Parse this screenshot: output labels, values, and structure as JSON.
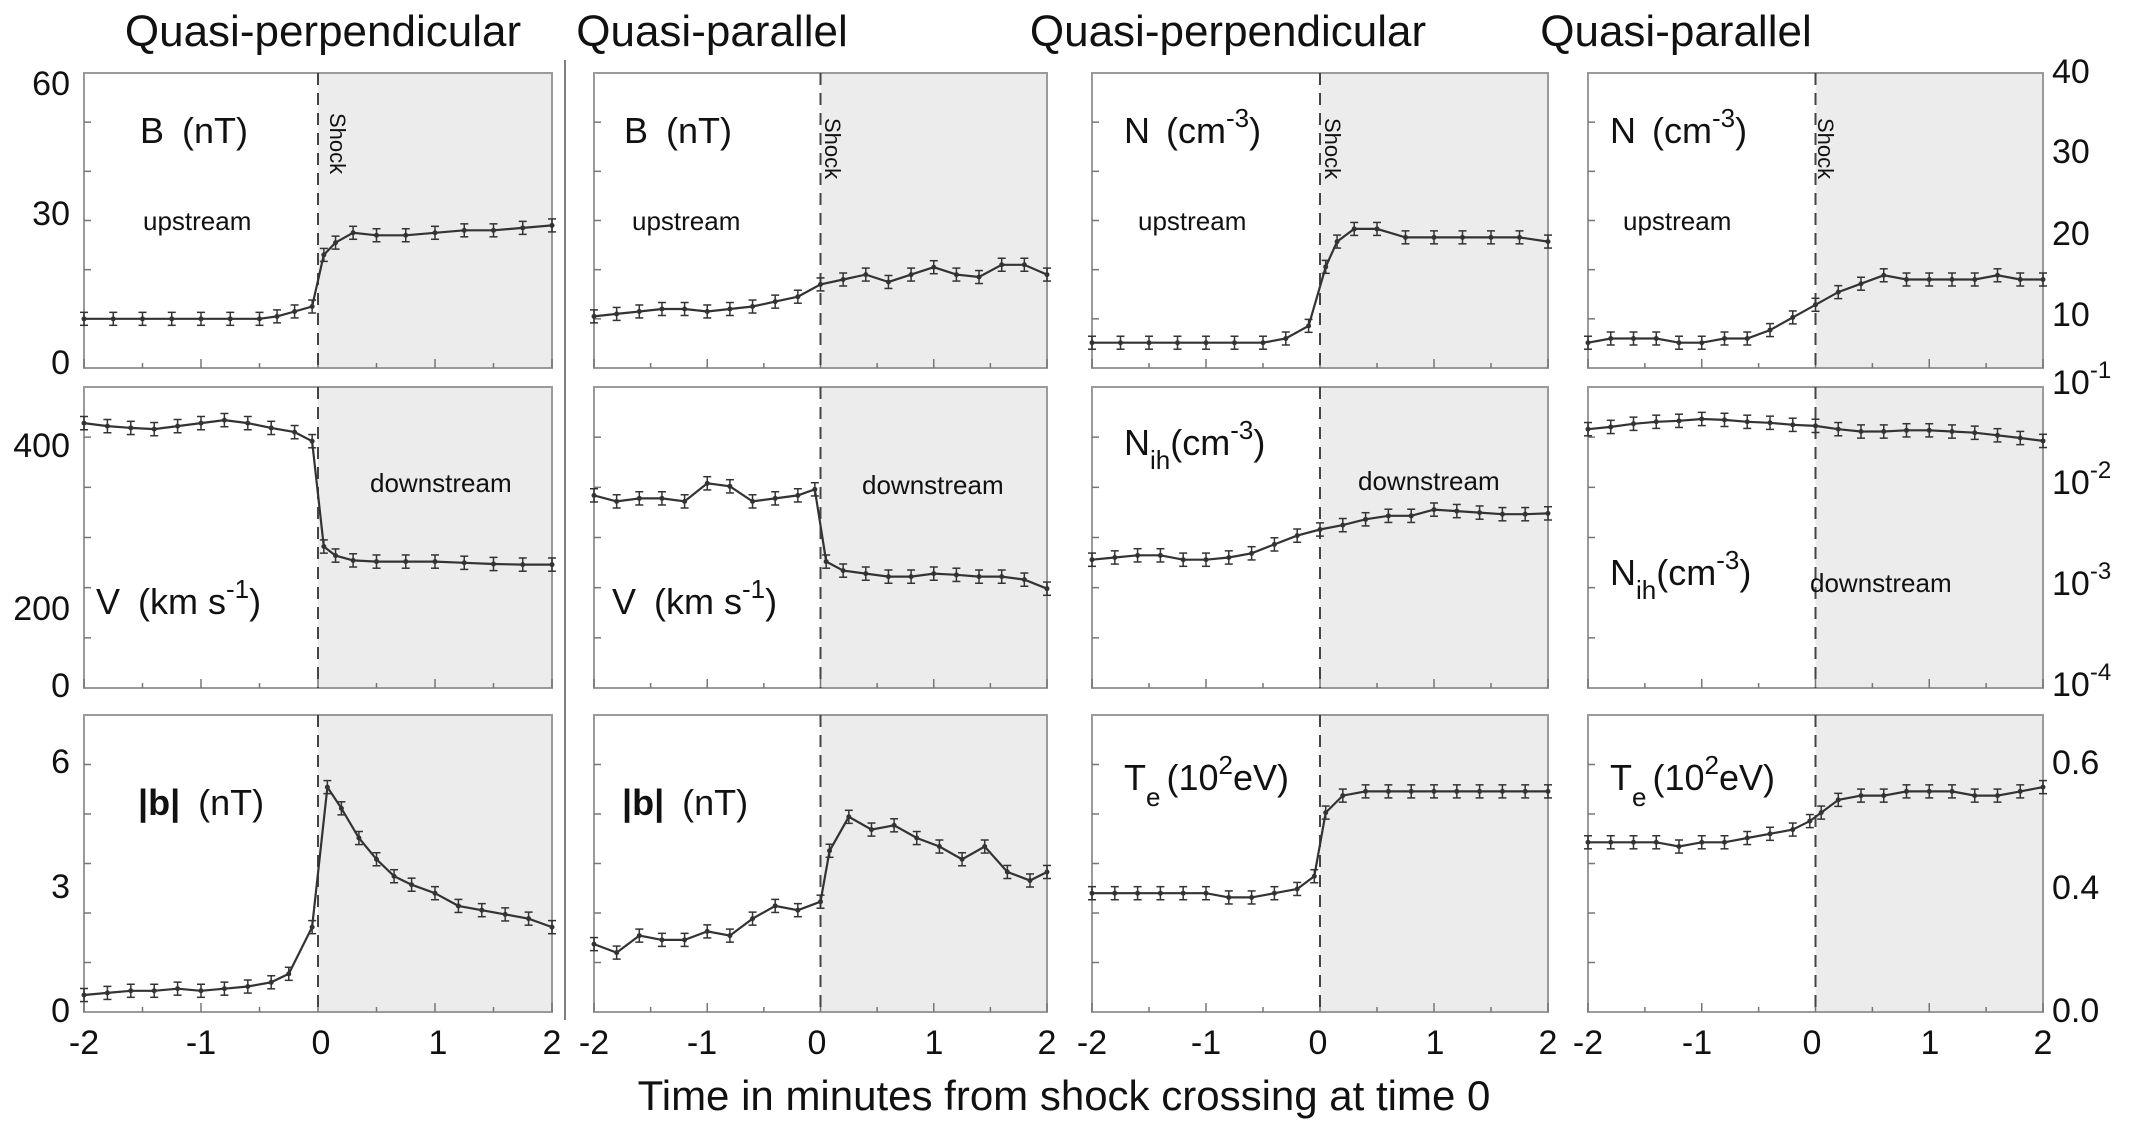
{
  "figure": {
    "xlabel": "Time  in minutes from shock crossing at time 0",
    "column_titles": [
      "Quasi-perpendicular",
      "Quasi-parallel",
      "Quasi-perpendicular",
      "Quasi-parallel"
    ],
    "x_ticks": [
      "-2",
      "-1",
      "0",
      "1",
      "2"
    ],
    "shock_label": "Shock",
    "upstream_label": "upstream",
    "downstream_label": "downstream",
    "left_axis": {
      "row1": {
        "ticks": [
          "60",
          "30",
          "0"
        ]
      },
      "row2": {
        "ticks": [
          "400",
          "200",
          "0"
        ]
      },
      "row3": {
        "ticks": [
          "6",
          "3",
          "0"
        ]
      }
    },
    "right_axis": {
      "row1": {
        "ticks": [
          "40",
          "30",
          "20",
          "10"
        ]
      },
      "row2": {
        "ticks": [
          {
            "base": "10",
            "exp": "-1"
          },
          {
            "base": "10",
            "exp": "-2"
          },
          {
            "base": "10",
            "exp": "-3"
          },
          {
            "base": "10",
            "exp": "-4"
          }
        ]
      },
      "row3": {
        "ticks": [
          "0.6",
          "0.4",
          "0.0"
        ]
      }
    },
    "panel_labels": {
      "B": {
        "sym": "B",
        "unit": "(nT)"
      },
      "V": {
        "sym": "V",
        "unit_pre": "(km s",
        "unit_exp": "-1",
        "unit_post": ")"
      },
      "b": {
        "sym": "|b|",
        "unit": "(nT)"
      },
      "N": {
        "sym": "N",
        "unit_pre": "(cm",
        "unit_exp": "-3",
        "unit_post": ")"
      },
      "Nih": {
        "sym": "N",
        "sub": "ih",
        "unit_pre": "(cm",
        "unit_exp": "-3",
        "unit_post": ")"
      },
      "Te": {
        "sym": "T",
        "sub": "e",
        "unit_pre": "(10",
        "unit_exp": "2",
        "unit_post": "eV)"
      }
    }
  },
  "chart_data": [
    {
      "type": "line",
      "panel": "row1-col1",
      "title": "Quasi-perpendicular",
      "ylabel": "B (nT)",
      "xlim": [
        -2,
        2
      ],
      "ylim": [
        0,
        60
      ],
      "annotations": [
        "upstream",
        "Shock"
      ],
      "x": [
        -2,
        -1.75,
        -1.5,
        -1.25,
        -1,
        -0.75,
        -0.5,
        -0.35,
        -0.2,
        -0.05,
        0.05,
        0.15,
        0.3,
        0.5,
        0.75,
        1,
        1.25,
        1.5,
        1.75,
        2
      ],
      "y": [
        10,
        10,
        10,
        10,
        10,
        10,
        10,
        10.5,
        11.5,
        12.5,
        23,
        25.5,
        27.5,
        27,
        27,
        27.5,
        28,
        28,
        28.5,
        29
      ]
    },
    {
      "type": "line",
      "panel": "row1-col2",
      "title": "Quasi-parallel",
      "ylabel": "B (nT)",
      "xlim": [
        -2,
        2
      ],
      "ylim": [
        0,
        60
      ],
      "annotations": [
        "upstream",
        "Shock"
      ],
      "x": [
        -2,
        -1.8,
        -1.6,
        -1.4,
        -1.2,
        -1,
        -0.8,
        -0.6,
        -0.4,
        -0.2,
        0,
        0.2,
        0.4,
        0.6,
        0.8,
        1,
        1.2,
        1.4,
        1.6,
        1.8,
        2
      ],
      "y": [
        10.5,
        11,
        11.5,
        12,
        12,
        11.5,
        12,
        12.5,
        13.5,
        14.5,
        17,
        18,
        19,
        17.5,
        19,
        20.5,
        19,
        18.5,
        21,
        21,
        19
      ]
    },
    {
      "type": "line",
      "panel": "row1-col3",
      "title": "Quasi-perpendicular",
      "ylabel": "N (cm^-3)",
      "xlim": [
        -2,
        2
      ],
      "ylim": [
        5,
        40
      ],
      "annotations": [
        "upstream",
        "Shock"
      ],
      "x": [
        -2,
        -1.75,
        -1.5,
        -1.25,
        -1,
        -0.75,
        -0.5,
        -0.3,
        -0.1,
        0.05,
        0.15,
        0.3,
        0.5,
        0.75,
        1,
        1.25,
        1.5,
        1.75,
        2
      ],
      "y": [
        8,
        8,
        8,
        8,
        8,
        8,
        8,
        8.5,
        10,
        17,
        20,
        21.5,
        21.5,
        20.5,
        20.5,
        20.5,
        20.5,
        20.5,
        20
      ]
    },
    {
      "type": "line",
      "panel": "row1-col4",
      "title": "Quasi-parallel",
      "ylabel": "N (cm^-3)",
      "xlim": [
        -2,
        2
      ],
      "ylim": [
        5,
        40
      ],
      "annotations": [
        "upstream",
        "Shock"
      ],
      "x": [
        -2,
        -1.8,
        -1.6,
        -1.4,
        -1.2,
        -1,
        -0.8,
        -0.6,
        -0.4,
        -0.2,
        0,
        0.2,
        0.4,
        0.6,
        0.8,
        1,
        1.2,
        1.4,
        1.6,
        1.8,
        2
      ],
      "y": [
        8,
        8.5,
        8.5,
        8.5,
        8,
        8,
        8.5,
        8.5,
        9.5,
        11,
        12.5,
        14,
        15,
        16,
        15.5,
        15.5,
        15.5,
        15.5,
        16,
        15.5,
        15.5
      ]
    },
    {
      "type": "line",
      "panel": "row2-col1",
      "ylabel": "V (km s^-1)",
      "xlim": [
        -2,
        2
      ],
      "ylim": [
        0,
        500
      ],
      "annotations": [
        "downstream"
      ],
      "x": [
        -2,
        -1.8,
        -1.6,
        -1.4,
        -1.2,
        -1,
        -0.8,
        -0.6,
        -0.4,
        -0.2,
        -0.05,
        0.05,
        0.15,
        0.3,
        0.5,
        0.75,
        1,
        1.25,
        1.5,
        1.75,
        2
      ],
      "y": [
        440,
        435,
        432,
        430,
        435,
        440,
        445,
        440,
        432,
        425,
        410,
        235,
        220,
        212,
        210,
        210,
        210,
        208,
        206,
        205,
        205
      ]
    },
    {
      "type": "line",
      "panel": "row2-col2",
      "ylabel": "V (km s^-1)",
      "xlim": [
        -2,
        2
      ],
      "ylim": [
        0,
        500
      ],
      "annotations": [
        "downstream"
      ],
      "x": [
        -2,
        -1.8,
        -1.6,
        -1.4,
        -1.2,
        -1,
        -0.8,
        -0.6,
        -0.4,
        -0.2,
        -0.05,
        0.05,
        0.2,
        0.4,
        0.6,
        0.8,
        1,
        1.2,
        1.4,
        1.6,
        1.8,
        2
      ],
      "y": [
        320,
        310,
        315,
        315,
        310,
        340,
        335,
        310,
        315,
        320,
        330,
        210,
        195,
        190,
        185,
        185,
        190,
        188,
        185,
        185,
        180,
        165
      ]
    },
    {
      "type": "line",
      "panel": "row2-col3",
      "ylabel": "N_ih (cm^-3)",
      "xlim": [
        -2,
        2
      ],
      "ylim": [
        0.0001,
        0.1
      ],
      "yscale": "log",
      "annotations": [
        "downstream"
      ],
      "x": [
        -2,
        -1.8,
        -1.6,
        -1.4,
        -1.2,
        -1,
        -0.8,
        -0.6,
        -0.4,
        -0.2,
        0,
        0.2,
        0.4,
        0.6,
        0.8,
        1,
        1.2,
        1.4,
        1.6,
        1.8,
        2
      ],
      "y": [
        0.0019,
        0.002,
        0.0021,
        0.0021,
        0.0019,
        0.0019,
        0.002,
        0.0022,
        0.0027,
        0.0033,
        0.0038,
        0.0042,
        0.0048,
        0.0052,
        0.0052,
        0.006,
        0.0058,
        0.0056,
        0.0054,
        0.0054,
        0.0055
      ]
    },
    {
      "type": "line",
      "panel": "row2-col4",
      "ylabel": "N_ih (cm^-3)",
      "xlim": [
        -2,
        2
      ],
      "ylim": [
        0.0001,
        0.1
      ],
      "yscale": "log",
      "annotations": [
        "downstream"
      ],
      "x": [
        -2,
        -1.8,
        -1.6,
        -1.4,
        -1.2,
        -1,
        -0.8,
        -0.6,
        -0.4,
        -0.2,
        0,
        0.2,
        0.4,
        0.6,
        0.8,
        1,
        1.2,
        1.4,
        1.6,
        1.8,
        2
      ],
      "y": [
        0.038,
        0.04,
        0.043,
        0.045,
        0.046,
        0.048,
        0.047,
        0.045,
        0.044,
        0.042,
        0.041,
        0.038,
        0.036,
        0.036,
        0.037,
        0.037,
        0.036,
        0.035,
        0.033,
        0.031,
        0.029
      ]
    },
    {
      "type": "line",
      "panel": "row3-col1",
      "ylabel": "|b| (nT)",
      "xlim": [
        -2,
        2
      ],
      "ylim": [
        0,
        7
      ],
      "x": [
        -2,
        -1.8,
        -1.6,
        -1.4,
        -1.2,
        -1,
        -0.8,
        -0.6,
        -0.4,
        -0.25,
        -0.05,
        0.08,
        0.2,
        0.35,
        0.5,
        0.65,
        0.8,
        1,
        1.2,
        1.4,
        1.6,
        1.8,
        2
      ],
      "y": [
        0.4,
        0.45,
        0.5,
        0.5,
        0.55,
        0.5,
        0.55,
        0.6,
        0.7,
        0.9,
        2.0,
        5.3,
        4.8,
        4.1,
        3.6,
        3.2,
        3.0,
        2.8,
        2.5,
        2.4,
        2.3,
        2.2,
        2.0
      ]
    },
    {
      "type": "line",
      "panel": "row3-col2",
      "ylabel": "|b| (nT)",
      "xlim": [
        -2,
        2
      ],
      "ylim": [
        0,
        7
      ],
      "x": [
        -2,
        -1.8,
        -1.6,
        -1.4,
        -1.2,
        -1,
        -0.8,
        -0.6,
        -0.4,
        -0.2,
        0,
        0.08,
        0.25,
        0.45,
        0.65,
        0.85,
        1.05,
        1.25,
        1.45,
        1.65,
        1.85,
        2
      ],
      "y": [
        1.6,
        1.4,
        1.8,
        1.7,
        1.7,
        1.9,
        1.8,
        2.2,
        2.5,
        2.4,
        2.6,
        3.8,
        4.6,
        4.3,
        4.4,
        4.1,
        3.9,
        3.6,
        3.9,
        3.3,
        3.1,
        3.3
      ]
    },
    {
      "type": "line",
      "panel": "row3-col3",
      "ylabel": "T_e (10^2 eV)",
      "xlim": [
        -2,
        2
      ],
      "ylim": [
        0,
        0.7
      ],
      "x": [
        -2,
        -1.8,
        -1.6,
        -1.4,
        -1.2,
        -1,
        -0.8,
        -0.6,
        -0.4,
        -0.2,
        -0.05,
        0.05,
        0.2,
        0.4,
        0.6,
        0.8,
        1,
        1.2,
        1.4,
        1.6,
        1.8,
        2
      ],
      "y": [
        0.28,
        0.28,
        0.28,
        0.28,
        0.28,
        0.28,
        0.27,
        0.27,
        0.28,
        0.29,
        0.32,
        0.47,
        0.51,
        0.52,
        0.52,
        0.52,
        0.52,
        0.52,
        0.52,
        0.52,
        0.52,
        0.52
      ]
    },
    {
      "type": "line",
      "panel": "row3-col4",
      "ylabel": "T_e (10^2 eV)",
      "xlim": [
        -2,
        2
      ],
      "ylim": [
        0,
        0.7
      ],
      "x": [
        -2,
        -1.8,
        -1.6,
        -1.4,
        -1.2,
        -1,
        -0.8,
        -0.6,
        -0.4,
        -0.2,
        -0.05,
        0.05,
        0.2,
        0.4,
        0.6,
        0.8,
        1,
        1.2,
        1.4,
        1.6,
        1.8,
        2
      ],
      "y": [
        0.4,
        0.4,
        0.4,
        0.4,
        0.39,
        0.4,
        0.4,
        0.41,
        0.42,
        0.43,
        0.45,
        0.47,
        0.5,
        0.51,
        0.51,
        0.52,
        0.52,
        0.52,
        0.51,
        0.51,
        0.52,
        0.53
      ]
    }
  ]
}
